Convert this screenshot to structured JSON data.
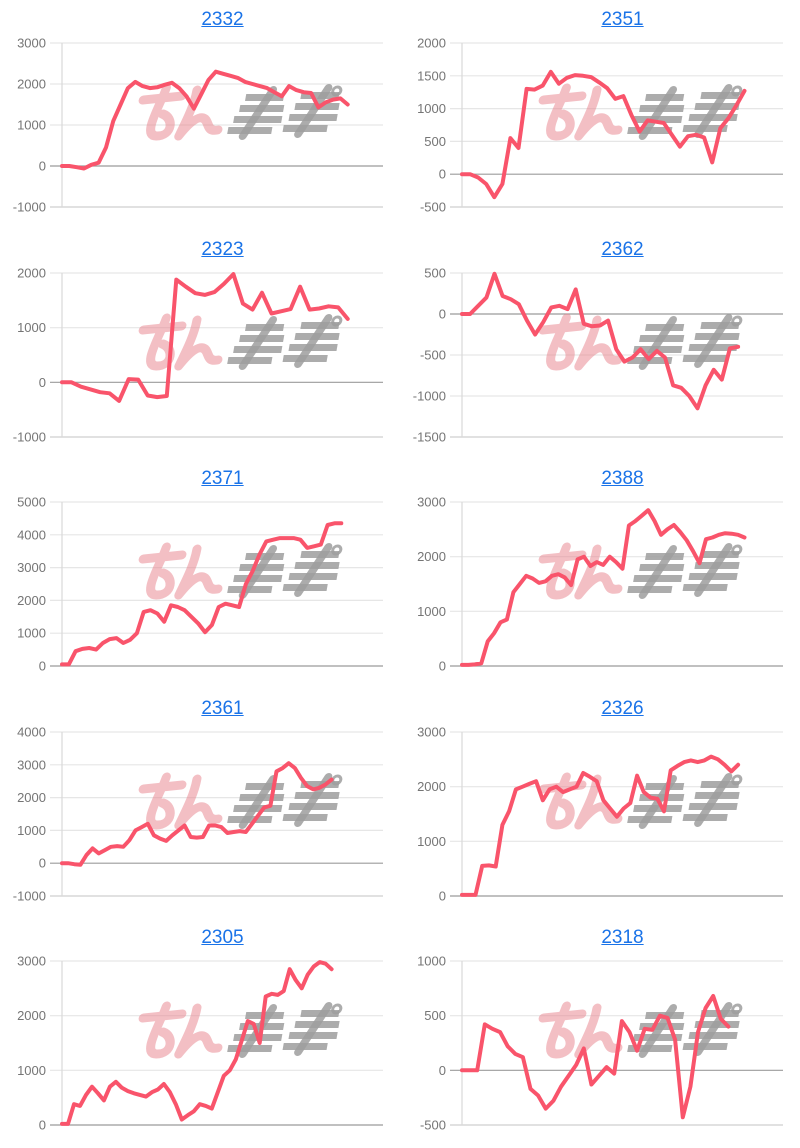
{
  "page": {
    "background": "#ffffff"
  },
  "style": {
    "line_color": "#F9546B",
    "grid_color": "#e6e6e6",
    "baseline_color": "#9b9b9b",
    "bottom_line_color": "#cfcfcf",
    "axis_line_color": "#d9d9d9",
    "label_color": "#757575",
    "title_color": "#1a73e8",
    "watermark_pink": "rgba(232,128,137,0.5)",
    "watermark_gray": "rgba(158,158,158,0.85)"
  },
  "watermark": {
    "text": "みんレポ"
  },
  "chart_data": [
    {
      "type": "line",
      "title": "2332",
      "ylim": [
        -1000,
        3000
      ],
      "yticks": [
        -1000,
        0,
        1000,
        2000,
        3000
      ],
      "x_extent": 0.89,
      "values": [
        0,
        0,
        -30,
        -60,
        30,
        80,
        450,
        1100,
        1500,
        1900,
        2050,
        1950,
        1900,
        1920,
        1980,
        2030,
        1900,
        1700,
        1400,
        1750,
        2100,
        2300,
        2250,
        2200,
        2150,
        2050,
        2000,
        1950,
        1900,
        1800,
        1700,
        1950,
        1850,
        1800,
        1780,
        1430,
        1550,
        1620,
        1650,
        1500
      ]
    },
    {
      "type": "line",
      "title": "2351",
      "ylim": [
        -500,
        2000
      ],
      "yticks": [
        -500,
        0,
        500,
        1000,
        1500,
        2000
      ],
      "x_extent": 0.88,
      "values": [
        0,
        0,
        -50,
        -150,
        -350,
        -150,
        550,
        400,
        1300,
        1290,
        1350,
        1560,
        1380,
        1470,
        1510,
        1500,
        1480,
        1400,
        1310,
        1150,
        1190,
        900,
        650,
        820,
        800,
        780,
        600,
        420,
        580,
        600,
        560,
        180,
        700,
        850,
        1050,
        1270
      ]
    },
    {
      "type": "line",
      "title": "2323",
      "ylim": [
        -1000,
        2000
      ],
      "yticks": [
        -1000,
        0,
        1000,
        2000
      ],
      "x_extent": 0.89,
      "values": [
        0,
        0,
        -80,
        -130,
        -180,
        -200,
        -340,
        60,
        50,
        -240,
        -270,
        -250,
        1880,
        1750,
        1630,
        1600,
        1650,
        1800,
        1980,
        1440,
        1330,
        1640,
        1260,
        1300,
        1340,
        1750,
        1330,
        1350,
        1390,
        1370,
        1160
      ]
    },
    {
      "type": "line",
      "title": "2362",
      "ylim": [
        -1500,
        500
      ],
      "yticks": [
        -1500,
        -1000,
        -500,
        0,
        500
      ],
      "x_extent": 0.86,
      "values": [
        0,
        0,
        100,
        200,
        490,
        220,
        180,
        120,
        -80,
        -250,
        -100,
        80,
        100,
        60,
        300,
        -120,
        -150,
        -140,
        -80,
        -430,
        -580,
        -530,
        -430,
        -550,
        -450,
        -530,
        -870,
        -900,
        -1000,
        -1150,
        -870,
        -680,
        -800,
        -420,
        -400
      ]
    },
    {
      "type": "line",
      "title": "2371",
      "ylim": [
        0,
        5000
      ],
      "yticks": [
        0,
        1000,
        2000,
        3000,
        4000,
        5000
      ],
      "x_extent": 0.87,
      "values": [
        50,
        50,
        450,
        520,
        550,
        500,
        700,
        820,
        850,
        700,
        800,
        1000,
        1650,
        1700,
        1600,
        1350,
        1850,
        1800,
        1700,
        1500,
        1300,
        1030,
        1250,
        1800,
        1900,
        1850,
        1800,
        2500,
        2900,
        3400,
        3800,
        3850,
        3900,
        3900,
        3900,
        3850,
        3600,
        3650,
        3700,
        4300,
        4350,
        4350
      ]
    },
    {
      "type": "line",
      "title": "2388",
      "ylim": [
        0,
        3000
      ],
      "yticks": [
        0,
        1000,
        2000,
        3000
      ],
      "x_extent": 0.88,
      "values": [
        20,
        20,
        30,
        50,
        450,
        600,
        800,
        850,
        1350,
        1500,
        1650,
        1600,
        1520,
        1550,
        1650,
        1680,
        1620,
        1480,
        1950,
        2000,
        1830,
        1900,
        1850,
        2000,
        1900,
        1780,
        2570,
        2650,
        2750,
        2850,
        2650,
        2400,
        2500,
        2580,
        2450,
        2300,
        2100,
        1880,
        2320,
        2350,
        2400,
        2430,
        2420,
        2400,
        2350
      ]
    },
    {
      "type": "line",
      "title": "2361",
      "ylim": [
        -1000,
        4000
      ],
      "yticks": [
        -1000,
        0,
        1000,
        2000,
        3000,
        4000
      ],
      "x_extent": 0.84,
      "values": [
        0,
        0,
        -30,
        -50,
        250,
        450,
        300,
        400,
        500,
        520,
        500,
        700,
        1000,
        1100,
        1200,
        850,
        750,
        680,
        850,
        1000,
        1150,
        800,
        780,
        800,
        1150,
        1150,
        1100,
        920,
        950,
        980,
        950,
        1200,
        1450,
        1700,
        1750,
        2800,
        2900,
        3050,
        2900,
        2600,
        2350,
        2250,
        2300,
        2400,
        2550
      ]
    },
    {
      "type": "line",
      "title": "2326",
      "ylim": [
        0,
        3000
      ],
      "yticks": [
        0,
        1000,
        2000,
        3000
      ],
      "x_extent": 0.86,
      "values": [
        20,
        20,
        20,
        550,
        560,
        540,
        1300,
        1550,
        1950,
        2000,
        2050,
        2100,
        1750,
        1950,
        2000,
        1900,
        1950,
        2000,
        2250,
        2180,
        2100,
        1750,
        1600,
        1450,
        1600,
        1700,
        2200,
        1900,
        1800,
        1780,
        1550,
        2300,
        2380,
        2450,
        2480,
        2450,
        2480,
        2550,
        2500,
        2400,
        2280,
        2400
      ]
    },
    {
      "type": "line",
      "title": "2305",
      "ylim": [
        0,
        3000
      ],
      "yticks": [
        0,
        1000,
        2000,
        3000
      ],
      "x_extent": 0.84,
      "values": [
        20,
        20,
        380,
        350,
        550,
        700,
        580,
        450,
        700,
        790,
        680,
        620,
        580,
        550,
        520,
        600,
        650,
        750,
        600,
        380,
        100,
        180,
        250,
        380,
        350,
        300,
        600,
        900,
        1000,
        1200,
        1550,
        1900,
        1850,
        1500,
        2350,
        2400,
        2380,
        2450,
        2850,
        2650,
        2500,
        2750,
        2900,
        2980,
        2950,
        2850
      ]
    },
    {
      "type": "line",
      "title": "2318",
      "ylim": [
        -500,
        1000
      ],
      "yticks": [
        -500,
        0,
        500,
        1000
      ],
      "x_extent": 0.83,
      "values": [
        0,
        0,
        0,
        420,
        380,
        350,
        220,
        150,
        120,
        -170,
        -230,
        -350,
        -280,
        -150,
        -50,
        50,
        200,
        -130,
        -50,
        30,
        -30,
        450,
        350,
        180,
        380,
        370,
        500,
        480,
        280,
        -430,
        -150,
        350,
        570,
        680,
        470,
        400
      ]
    }
  ]
}
